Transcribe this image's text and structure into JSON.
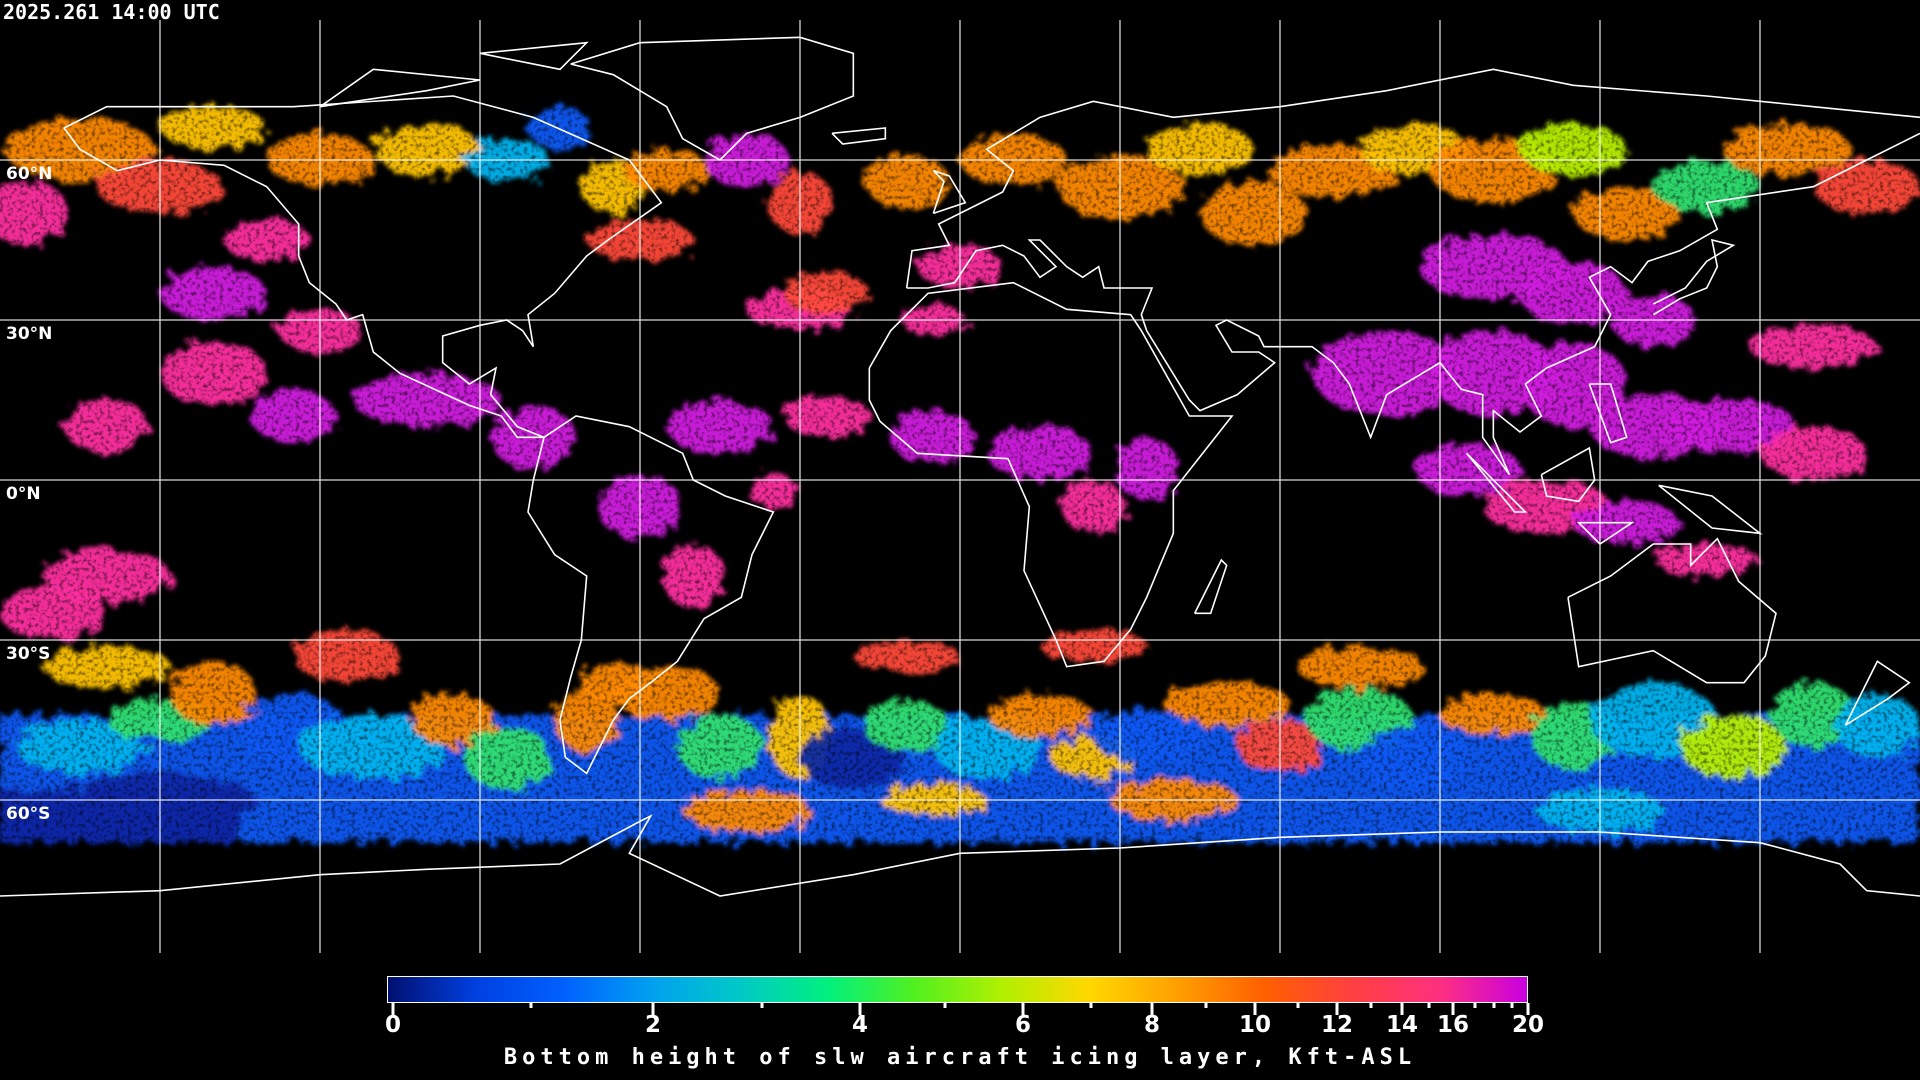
{
  "header": {
    "timestamp": "2025.261 14:00 UTC"
  },
  "map": {
    "projection": "equirectangular",
    "lon_range": [
      -180,
      180
    ],
    "lat_range": [
      -90,
      90
    ],
    "grid_spacing_deg": 30,
    "lat_labels": [
      {
        "lat": 60,
        "text": "60°N"
      },
      {
        "lat": 30,
        "text": "30°N"
      },
      {
        "lat": 0,
        "text": "0°N"
      },
      {
        "lat": -30,
        "text": "30°S"
      },
      {
        "lat": -60,
        "text": "60°S"
      }
    ],
    "grid_color": "#ffffff",
    "coastline_color": "#ffffff",
    "background": "#000000"
  },
  "colorbar": {
    "title": "Bottom height of slw aircraft icing layer, Kft-ASL",
    "range": [
      0,
      20
    ],
    "major_ticks": [
      {
        "value": 0,
        "label": "0"
      },
      {
        "value": 2,
        "label": "2"
      },
      {
        "value": 4,
        "label": "4"
      },
      {
        "value": 6,
        "label": "6"
      },
      {
        "value": 8,
        "label": "8"
      },
      {
        "value": 10,
        "label": "10"
      },
      {
        "value": 12,
        "label": "12"
      },
      {
        "value": 14,
        "label": "14"
      },
      {
        "value": 16,
        "label": "16"
      },
      {
        "value": 20,
        "label": "20"
      }
    ],
    "minor_ticks": [
      1,
      3,
      5,
      7,
      9,
      11,
      13,
      15,
      17,
      18,
      19
    ],
    "colors": [
      "#001070",
      "#0040e0",
      "#0060ff",
      "#00a0f0",
      "#00c8c8",
      "#00f080",
      "#50f020",
      "#b0f000",
      "#ffd800",
      "#ffa000",
      "#ff6000",
      "#ff4040",
      "#ff3080",
      "#c800e0"
    ]
  }
}
